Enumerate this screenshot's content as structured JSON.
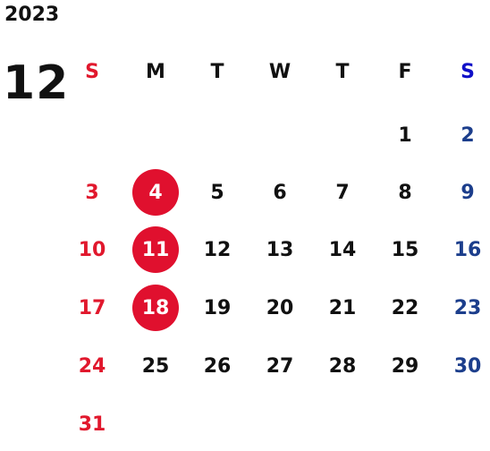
{
  "calendar": {
    "year": "2023",
    "month": "12",
    "weekdays": [
      {
        "label": "S",
        "kind": "sun"
      },
      {
        "label": "M",
        "kind": "day"
      },
      {
        "label": "T",
        "kind": "day"
      },
      {
        "label": "W",
        "kind": "day"
      },
      {
        "label": "T",
        "kind": "day"
      },
      {
        "label": "F",
        "kind": "day"
      },
      {
        "label": "S",
        "kind": "sat"
      }
    ],
    "weeks": [
      [
        "",
        "",
        "",
        "",
        "",
        "1",
        "2"
      ],
      [
        "3",
        "4",
        "5",
        "6",
        "7",
        "8",
        "9"
      ],
      [
        "10",
        "11",
        "12",
        "13",
        "14",
        "15",
        "16"
      ],
      [
        "17",
        "18",
        "19",
        "20",
        "21",
        "22",
        "23"
      ],
      [
        "24",
        "25",
        "26",
        "27",
        "28",
        "29",
        "30"
      ],
      [
        "31",
        "",
        "",
        "",
        "",
        "",
        ""
      ]
    ],
    "highlighted_days": [
      "4",
      "11",
      "18"
    ],
    "colors": {
      "sunday": "#e1182d",
      "saturday": "#1c3e8c",
      "saturday_header": "#1010c8",
      "highlight": "#e0102e",
      "text": "#111111"
    }
  }
}
